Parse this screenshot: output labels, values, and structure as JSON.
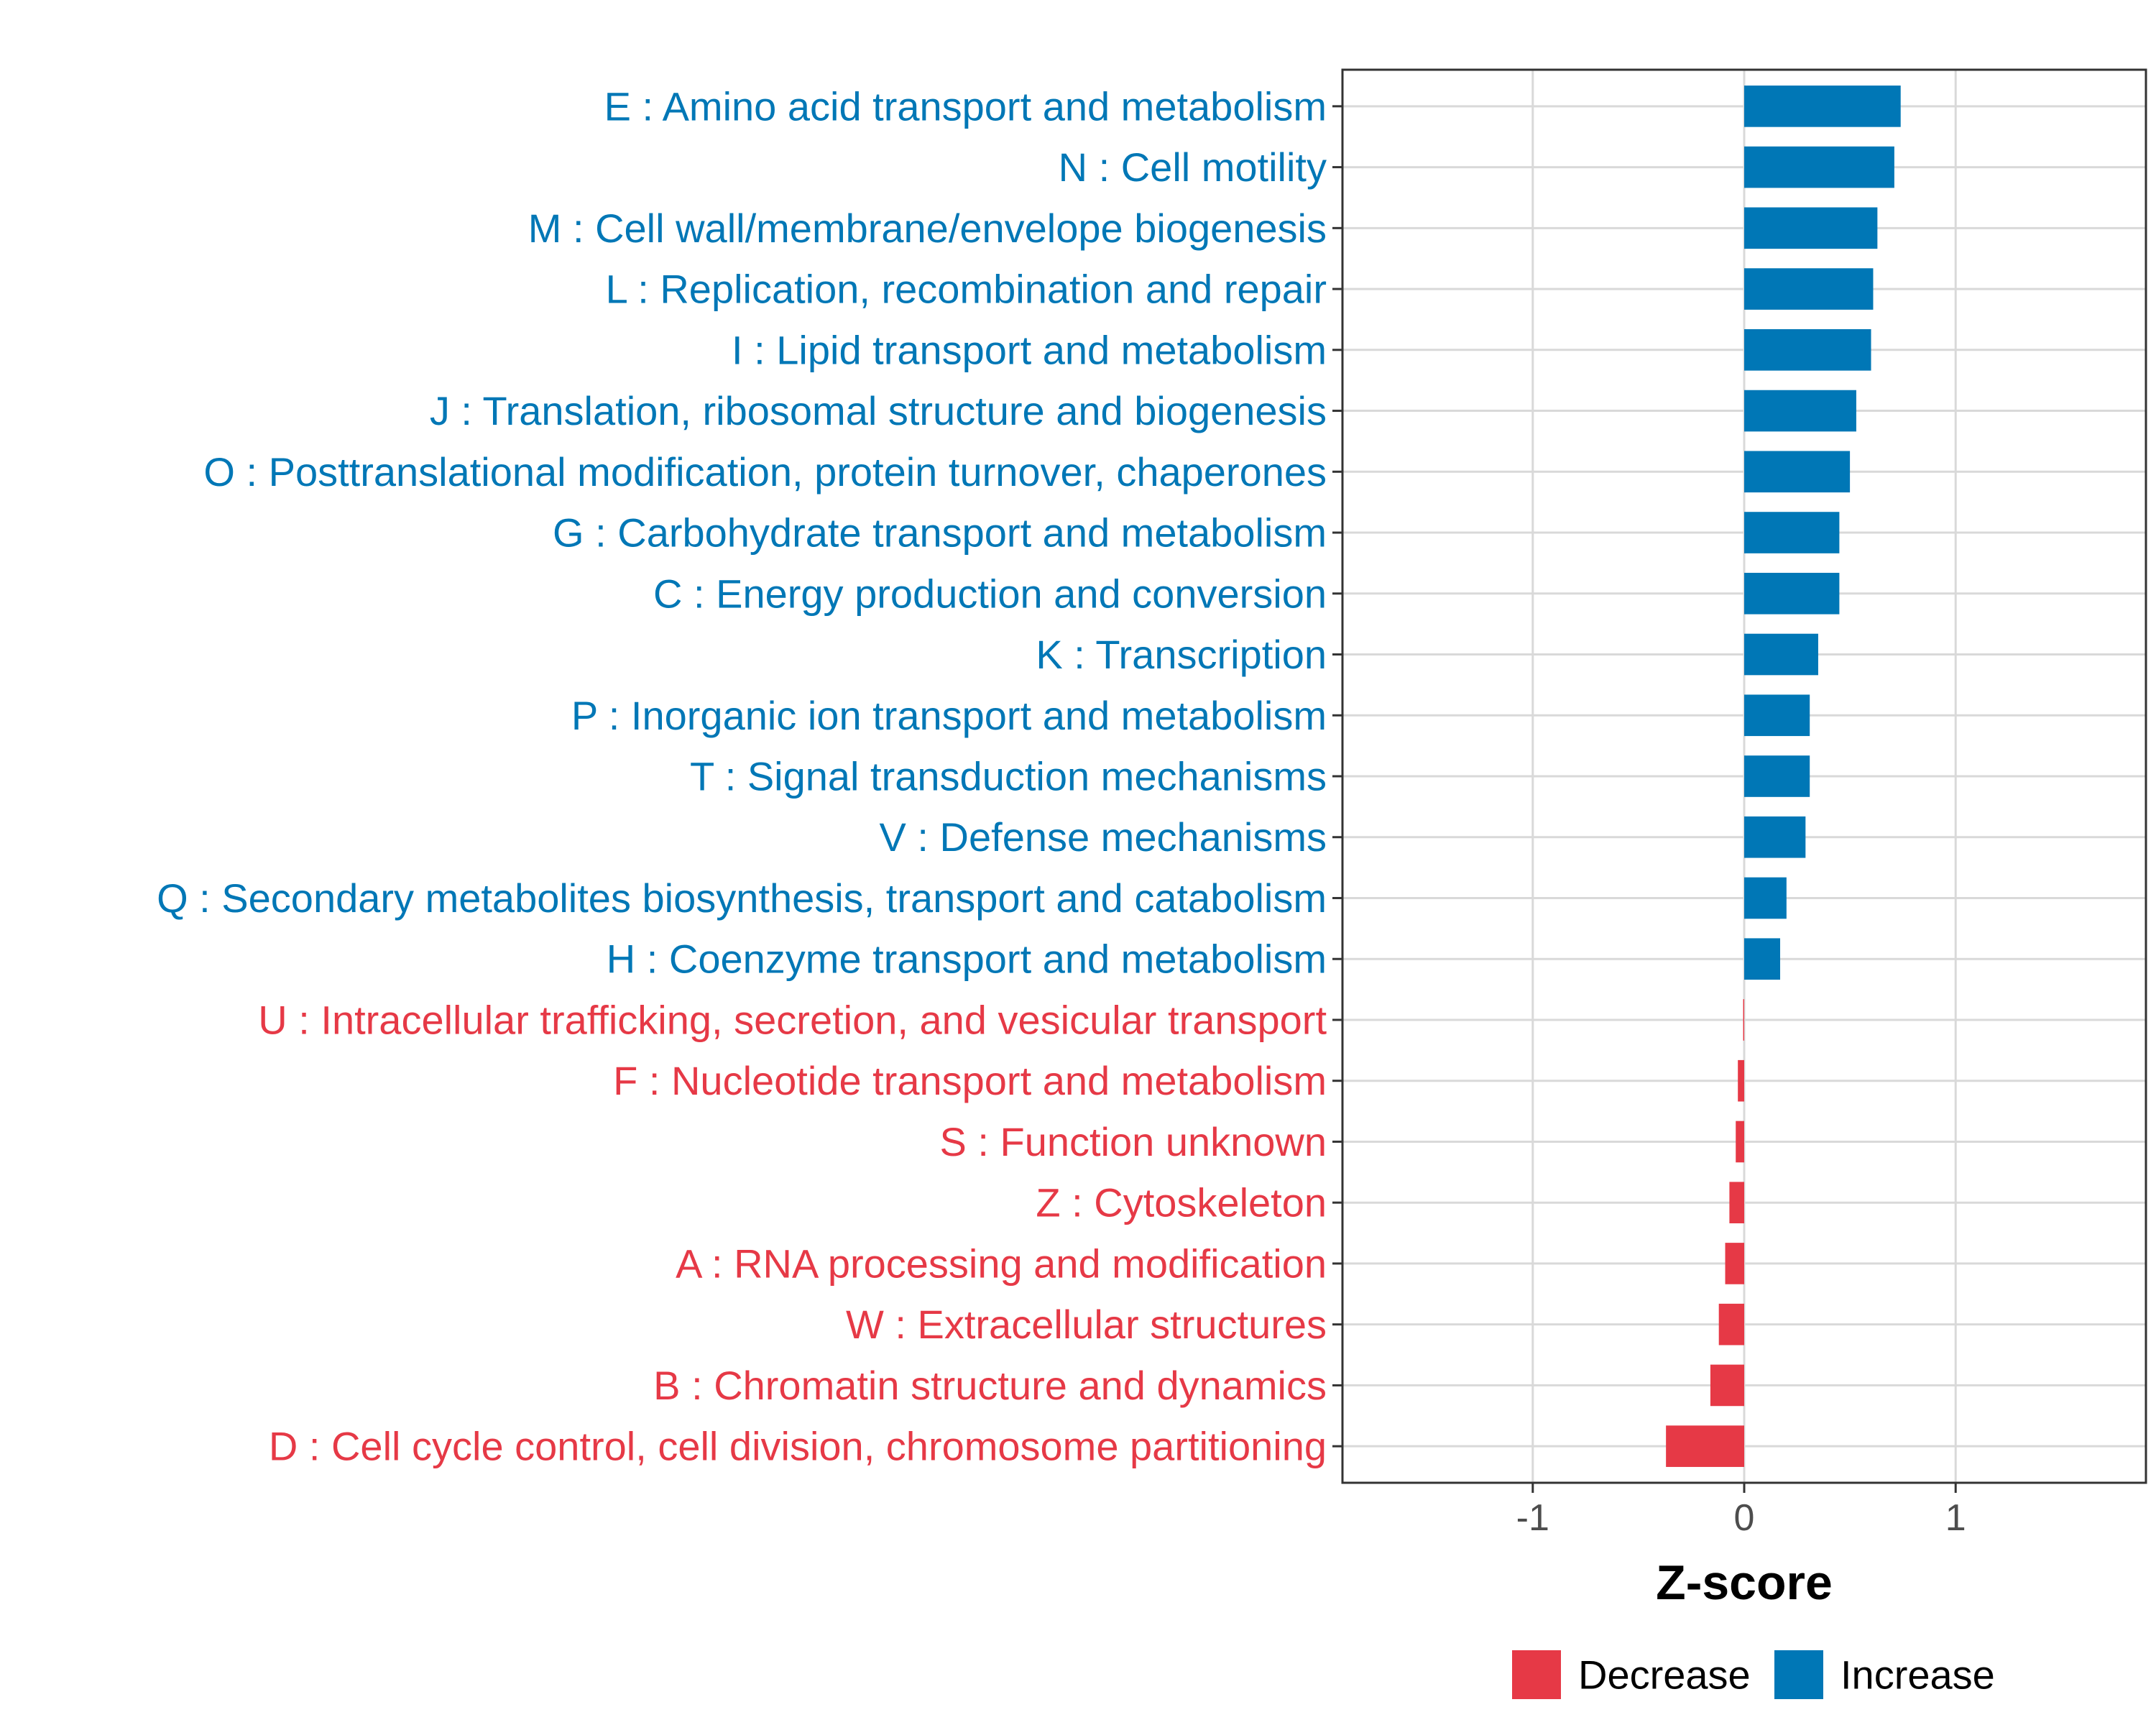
{
  "chart_data": {
    "type": "bar",
    "orientation": "horizontal",
    "title": "",
    "xlabel": "Z-score",
    "ylabel": "",
    "xlim": [
      -1.9,
      1.9
    ],
    "xticks": [
      -1,
      0,
      1
    ],
    "xtick_labels": [
      "-1",
      "0",
      "1"
    ],
    "grid": true,
    "legend": {
      "position": "bottom",
      "entries": [
        {
          "label": "Decrease",
          "color": "#e63946"
        },
        {
          "label": "Increase",
          "color": "#0077b6"
        }
      ]
    },
    "categories": [
      {
        "label": "E : Amino acid transport and metabolism",
        "value": 0.74,
        "group": "Increase"
      },
      {
        "label": "N : Cell motility",
        "value": 0.71,
        "group": "Increase"
      },
      {
        "label": "M : Cell wall/membrane/envelope biogenesis",
        "value": 0.63,
        "group": "Increase"
      },
      {
        "label": "L : Replication, recombination and repair",
        "value": 0.61,
        "group": "Increase"
      },
      {
        "label": "I : Lipid transport and metabolism",
        "value": 0.6,
        "group": "Increase"
      },
      {
        "label": "J : Translation, ribosomal structure and biogenesis",
        "value": 0.53,
        "group": "Increase"
      },
      {
        "label": "O : Posttranslational modification, protein turnover, chaperones",
        "value": 0.5,
        "group": "Increase"
      },
      {
        "label": "G : Carbohydrate transport and metabolism",
        "value": 0.45,
        "group": "Increase"
      },
      {
        "label": "C : Energy production and conversion",
        "value": 0.45,
        "group": "Increase"
      },
      {
        "label": "K : Transcription",
        "value": 0.35,
        "group": "Increase"
      },
      {
        "label": "P : Inorganic ion transport and metabolism",
        "value": 0.31,
        "group": "Increase"
      },
      {
        "label": "T : Signal transduction mechanisms",
        "value": 0.31,
        "group": "Increase"
      },
      {
        "label": "V : Defense mechanisms",
        "value": 0.29,
        "group": "Increase"
      },
      {
        "label": "Q : Secondary metabolites biosynthesis, transport and catabolism",
        "value": 0.2,
        "group": "Increase"
      },
      {
        "label": "H : Coenzyme transport and metabolism",
        "value": 0.17,
        "group": "Increase"
      },
      {
        "label": "U : Intracellular trafficking, secretion, and vesicular transport",
        "value": -0.005,
        "group": "Decrease"
      },
      {
        "label": "F : Nucleotide transport and metabolism",
        "value": -0.03,
        "group": "Decrease"
      },
      {
        "label": "S : Function unknown",
        "value": -0.04,
        "group": "Decrease"
      },
      {
        "label": "Z : Cytoskeleton",
        "value": -0.07,
        "group": "Decrease"
      },
      {
        "label": "A : RNA processing and modification",
        "value": -0.09,
        "group": "Decrease"
      },
      {
        "label": "W : Extracellular structures",
        "value": -0.12,
        "group": "Decrease"
      },
      {
        "label": "B : Chromatin structure and dynamics",
        "value": -0.16,
        "group": "Decrease"
      },
      {
        "label": "D : Cell cycle control, cell division, chromosome partitioning",
        "value": -0.37,
        "group": "Decrease"
      }
    ]
  }
}
